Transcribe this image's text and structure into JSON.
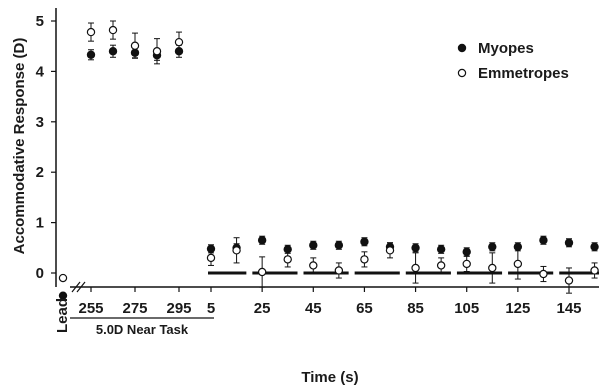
{
  "chart_data": {
    "type": "scatter",
    "title": "",
    "xlabel": "Time (s)",
    "ylabel": "Accommodative Response (D)",
    "ylim": [
      -0.6,
      5.2
    ],
    "yticks": [
      "0",
      "1",
      "2",
      "3",
      "4",
      "5"
    ],
    "xtick_labels": [
      "Lead",
      "255",
      "275",
      "295",
      "5",
      "25",
      "45",
      "65",
      "85",
      "105",
      "125",
      "145"
    ],
    "group_label": "5.0D Near Task",
    "grid": false,
    "legend_position": "top-right",
    "colors": {
      "myopes": "#111111",
      "emmetropes": "#ffffff",
      "stroke": "#111111"
    },
    "lead": [
      {
        "name": "Myopes",
        "y": -0.45,
        "err": 0
      },
      {
        "name": "Emmetropes",
        "y": -0.1,
        "err": 0
      }
    ],
    "near_task": {
      "x": [
        255,
        265,
        275,
        285,
        295
      ],
      "series": [
        {
          "name": "Myopes",
          "marker": "filled",
          "values": [
            4.33,
            4.4,
            4.37,
            4.32,
            4.4
          ],
          "errors": [
            0.1,
            0.12,
            0.1,
            0.1,
            0.12
          ]
        },
        {
          "name": "Emmetropes",
          "marker": "open",
          "values": [
            4.78,
            4.82,
            4.51,
            4.4,
            4.58
          ],
          "errors": [
            0.18,
            0.18,
            0.25,
            0.25,
            0.2
          ]
        }
      ]
    },
    "recovery": {
      "x": [
        5,
        15,
        25,
        35,
        45,
        55,
        65,
        75,
        85,
        95,
        105,
        115,
        125,
        135,
        145,
        155
      ],
      "series": [
        {
          "name": "Myopes",
          "marker": "filled",
          "values": [
            0.48,
            0.5,
            0.65,
            0.47,
            0.55,
            0.55,
            0.62,
            0.52,
            0.5,
            0.47,
            0.42,
            0.52,
            0.52,
            0.65,
            0.6,
            0.52
          ],
          "errors": [
            0.08,
            0.08,
            0.08,
            0.08,
            0.08,
            0.08,
            0.08,
            0.08,
            0.08,
            0.08,
            0.08,
            0.08,
            0.08,
            0.08,
            0.08,
            0.08
          ]
        },
        {
          "name": "Emmetropes",
          "marker": "open",
          "values": [
            0.3,
            0.45,
            0.02,
            0.27,
            0.15,
            0.05,
            0.27,
            0.45,
            0.1,
            0.15,
            0.18,
            0.1,
            0.18,
            -0.02,
            -0.15,
            0.05
          ],
          "errors": [
            0.15,
            0.25,
            0.3,
            0.15,
            0.15,
            0.15,
            0.15,
            0.15,
            0.3,
            0.15,
            0.15,
            0.3,
            0.3,
            0.15,
            0.25,
            0.15
          ]
        }
      ],
      "reference_line": {
        "y": 0.0,
        "segments": [
          [
            0,
            20
          ],
          [
            20,
            40
          ],
          [
            40,
            60
          ],
          [
            60,
            80
          ],
          [
            80,
            100
          ],
          [
            100,
            120
          ],
          [
            120,
            140
          ],
          [
            140,
            160
          ]
        ]
      }
    },
    "legend": [
      {
        "label": "Myopes",
        "marker": "filled"
      },
      {
        "label": "Emmetropes",
        "marker": "open"
      }
    ]
  }
}
